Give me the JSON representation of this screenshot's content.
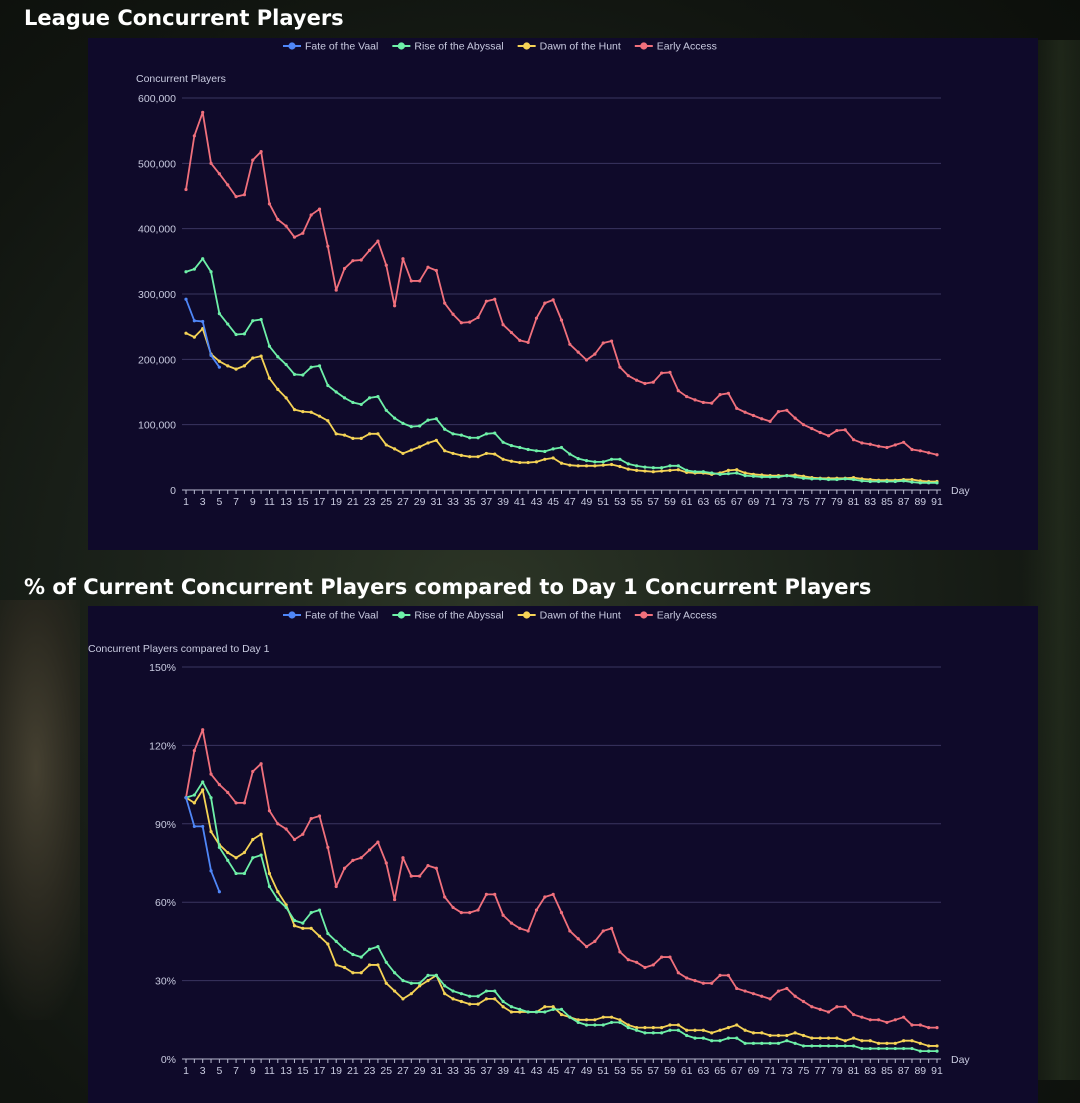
{
  "titles": {
    "chart1": "League Concurrent Players",
    "chart2": "% of Current Concurrent Players compared to Day 1 Concurrent Players"
  },
  "chart_data": [
    {
      "type": "line",
      "title": "League Concurrent Players",
      "ylabel": "Concurrent Players",
      "xlabel": "Day",
      "ylim": [
        0,
        600000
      ],
      "yticks": [
        0,
        100000,
        200000,
        300000,
        400000,
        500000,
        600000
      ],
      "ytick_labels": [
        "0",
        "100,000",
        "200,000",
        "300,000",
        "400,000",
        "500,000",
        "600,000"
      ],
      "xticks": [
        1,
        3,
        5,
        7,
        9,
        11,
        13,
        15,
        17,
        19,
        21,
        23,
        25,
        27,
        29,
        31,
        33,
        35,
        37,
        39,
        41,
        43,
        45,
        47,
        49,
        51,
        53,
        55,
        57,
        59,
        61,
        63,
        65,
        67,
        69,
        71,
        73,
        75,
        77,
        79,
        81,
        83,
        85,
        87,
        89,
        91
      ],
      "grid": true,
      "legend": "top-center",
      "series": [
        {
          "name": "Fate of the Vaal",
          "color": "#4f86f7",
          "values": [
            292000,
            259000,
            258000,
            206000,
            188000
          ]
        },
        {
          "name": "Rise of the Abyssal",
          "color": "#6ef0a8",
          "values": [
            334000,
            338000,
            354000,
            334000,
            270000,
            254000,
            238000,
            239000,
            259000,
            261000,
            220000,
            204000,
            192000,
            177000,
            176000,
            188000,
            190000,
            160000,
            150000,
            141000,
            134000,
            131000,
            141000,
            143000,
            122000,
            110000,
            102000,
            97000,
            98000,
            107000,
            109000,
            93000,
            86000,
            84000,
            80000,
            80000,
            86000,
            87000,
            73000,
            68000,
            65000,
            62000,
            60000,
            59000,
            63000,
            65000,
            55000,
            48000,
            45000,
            43000,
            43000,
            47000,
            47000,
            40000,
            37000,
            35000,
            34000,
            34000,
            37000,
            37000,
            30000,
            28000,
            28000,
            26000,
            24000,
            25000,
            26000,
            22000,
            21000,
            20000,
            20000,
            20000,
            22000,
            20000,
            18000,
            17000,
            17000,
            16000,
            16000,
            17000,
            16000,
            14000,
            13000,
            13000,
            13000,
            13000,
            14000,
            12000,
            11000,
            11000,
            11000
          ]
        },
        {
          "name": "Dawn of the Hunt",
          "color": "#f5d356",
          "values": [
            240000,
            234000,
            247000,
            208000,
            197000,
            190000,
            185000,
            190000,
            202000,
            205000,
            171000,
            154000,
            141000,
            123000,
            120000,
            119000,
            113000,
            106000,
            86000,
            84000,
            79000,
            79000,
            86000,
            86000,
            69000,
            63000,
            56000,
            61000,
            66000,
            72000,
            76000,
            60000,
            56000,
            53000,
            51000,
            51000,
            56000,
            55000,
            47000,
            44000,
            42000,
            42000,
            43000,
            47000,
            49000,
            41000,
            38000,
            37000,
            37000,
            37000,
            38000,
            39000,
            36000,
            32000,
            30000,
            29000,
            28000,
            29000,
            30000,
            31000,
            27000,
            26000,
            26000,
            24000,
            26000,
            30000,
            31000,
            26000,
            24000,
            23000,
            22000,
            22000,
            22000,
            23000,
            21000,
            19000,
            18000,
            18000,
            18000,
            18000,
            19000,
            17000,
            16000,
            15000,
            15000,
            15000,
            16000,
            16000,
            14000,
            13000,
            13000
          ]
        },
        {
          "name": "Early Access",
          "color": "#f0707c",
          "values": [
            460000,
            542000,
            578000,
            500000,
            484000,
            467000,
            449000,
            452000,
            505000,
            518000,
            438000,
            414000,
            404000,
            387000,
            393000,
            421000,
            430000,
            373000,
            306000,
            339000,
            351000,
            352000,
            367000,
            381000,
            344000,
            282000,
            354000,
            320000,
            320000,
            341000,
            336000,
            286000,
            269000,
            256000,
            257000,
            264000,
            289000,
            292000,
            253000,
            241000,
            229000,
            226000,
            263000,
            286000,
            291000,
            260000,
            223000,
            211000,
            199000,
            208000,
            225000,
            228000,
            188000,
            175000,
            168000,
            163000,
            165000,
            179000,
            180000,
            152000,
            143000,
            138000,
            134000,
            133000,
            146000,
            148000,
            125000,
            119000,
            114000,
            109000,
            105000,
            120000,
            122000,
            110000,
            100000,
            94000,
            88000,
            83000,
            91000,
            92000,
            77000,
            72000,
            70000,
            67000,
            65000,
            69000,
            73000,
            62000,
            60000,
            57000,
            54000
          ]
        }
      ]
    },
    {
      "type": "line",
      "title": "% of Current Concurrent Players compared to Day 1 Concurrent Players",
      "ylabel": "Concurrent Players compared to Day 1",
      "xlabel": "Day",
      "ylim": [
        0,
        150
      ],
      "yticks": [
        0,
        30,
        60,
        90,
        120,
        150
      ],
      "ytick_labels": [
        "0%",
        "30%",
        "60%",
        "90%",
        "120%",
        "150%"
      ],
      "xticks": [
        1,
        3,
        5,
        7,
        9,
        11,
        13,
        15,
        17,
        19,
        21,
        23,
        25,
        27,
        29,
        31,
        33,
        35,
        37,
        39,
        41,
        43,
        45,
        47,
        49,
        51,
        53,
        55,
        57,
        59,
        61,
        63,
        65,
        67,
        69,
        71,
        73,
        75,
        77,
        79,
        81,
        83,
        85,
        87,
        89,
        91
      ],
      "grid": true,
      "legend": "top-center",
      "series": [
        {
          "name": "Fate of the Vaal",
          "color": "#4f86f7",
          "values": [
            100,
            89,
            89,
            72,
            64
          ]
        },
        {
          "name": "Rise of the Abyssal",
          "color": "#6ef0a8",
          "values": [
            100,
            101,
            106,
            100,
            81,
            76,
            71,
            71,
            77,
            78,
            66,
            61,
            58,
            53,
            52,
            56,
            57,
            48,
            45,
            42,
            40,
            39,
            42,
            43,
            37,
            33,
            30,
            29,
            29,
            32,
            32,
            28,
            26,
            25,
            24,
            24,
            26,
            26,
            22,
            20,
            19,
            18,
            18,
            18,
            19,
            19,
            16,
            14,
            13,
            13,
            13,
            14,
            14,
            12,
            11,
            10,
            10,
            10,
            11,
            11,
            9,
            8,
            8,
            7,
            7,
            8,
            8,
            6,
            6,
            6,
            6,
            6,
            7,
            6,
            5,
            5,
            5,
            5,
            5,
            5,
            5,
            4,
            4,
            4,
            4,
            4,
            4,
            4,
            3,
            3,
            3
          ]
        },
        {
          "name": "Dawn of the Hunt",
          "color": "#f5d356",
          "values": [
            100,
            98,
            103,
            87,
            82,
            79,
            77,
            79,
            84,
            86,
            71,
            64,
            59,
            51,
            50,
            50,
            47,
            44,
            36,
            35,
            33,
            33,
            36,
            36,
            29,
            26,
            23,
            25,
            28,
            30,
            32,
            25,
            23,
            22,
            21,
            21,
            23,
            23,
            20,
            18,
            18,
            18,
            18,
            20,
            20,
            17,
            16,
            15,
            15,
            15,
            16,
            16,
            15,
            13,
            12,
            12,
            12,
            12,
            13,
            13,
            11,
            11,
            11,
            10,
            11,
            12,
            13,
            11,
            10,
            10,
            9,
            9,
            9,
            10,
            9,
            8,
            8,
            8,
            8,
            7,
            8,
            7,
            7,
            6,
            6,
            6,
            7,
            7,
            6,
            5,
            5
          ]
        },
        {
          "name": "Early Access",
          "color": "#f0707c",
          "values": [
            100,
            118,
            126,
            109,
            105,
            102,
            98,
            98,
            110,
            113,
            95,
            90,
            88,
            84,
            86,
            92,
            93,
            81,
            66,
            73,
            76,
            77,
            80,
            83,
            75,
            61,
            77,
            70,
            70,
            74,
            73,
            62,
            58,
            56,
            56,
            57,
            63,
            63,
            55,
            52,
            50,
            49,
            57,
            62,
            63,
            56,
            49,
            46,
            43,
            45,
            49,
            50,
            41,
            38,
            37,
            35,
            36,
            39,
            39,
            33,
            31,
            30,
            29,
            29,
            32,
            32,
            27,
            26,
            25,
            24,
            23,
            26,
            27,
            24,
            22,
            20,
            19,
            18,
            20,
            20,
            17,
            16,
            15,
            15,
            14,
            15,
            16,
            13,
            13,
            12,
            12
          ]
        }
      ]
    }
  ]
}
